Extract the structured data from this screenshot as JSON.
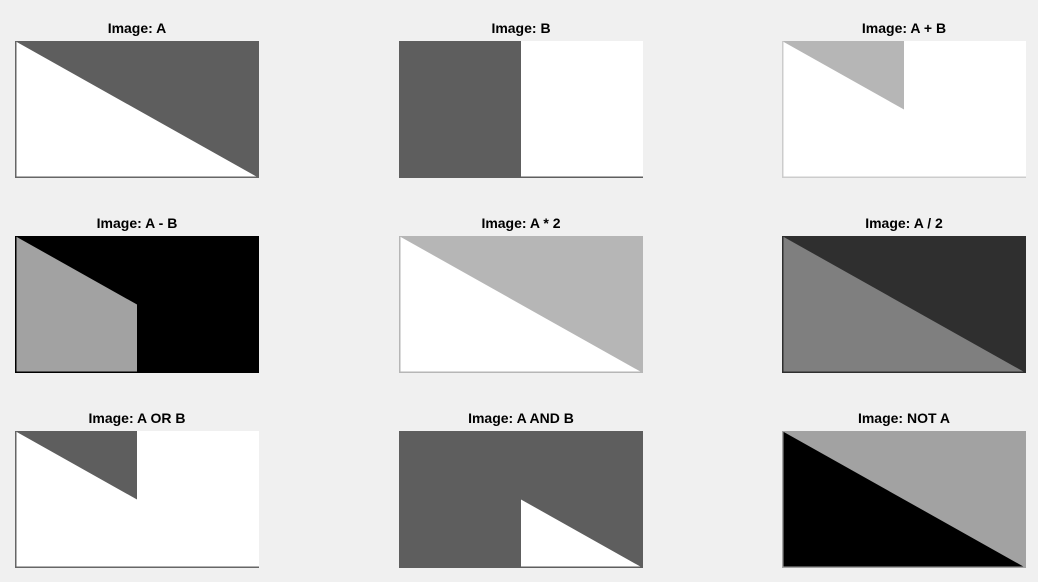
{
  "figure": {
    "panels": [
      {
        "title": "Image: A",
        "base": "#ffffff",
        "regions": [
          {
            "shape": "triangle-upper",
            "fill": "#5e5e5e"
          }
        ],
        "frame": "#666666"
      },
      {
        "title": "Image: B",
        "base": "#ffffff",
        "regions": [
          {
            "shape": "left-half",
            "fill": "#5e5e5e"
          }
        ],
        "frame": "#5e5e5e"
      },
      {
        "title": "Image: A + B",
        "base": "#ffffff",
        "regions": [
          {
            "shape": "upper-left-wedge",
            "fill": "#b6b6b6"
          }
        ],
        "frame": "#cccccc"
      },
      {
        "title": "Image: A - B",
        "base": "#000000",
        "regions": [
          {
            "shape": "lower-left-wedge",
            "fill": "#a2a2a2"
          }
        ],
        "frame": "#000000"
      },
      {
        "title": "Image: A * 2",
        "base": "#ffffff",
        "regions": [
          {
            "shape": "triangle-upper",
            "fill": "#b6b6b6"
          }
        ],
        "frame": "#b6b6b6"
      },
      {
        "title": "Image: A / 2",
        "base": "#7f7f7f",
        "regions": [
          {
            "shape": "triangle-upper",
            "fill": "#2f2f2f"
          }
        ],
        "frame": "#2f2f2f"
      },
      {
        "title": "Image: A OR B",
        "base": "#ffffff",
        "regions": [
          {
            "shape": "upper-left-wedge",
            "fill": "#5e5e5e"
          }
        ],
        "frame": "#666666"
      },
      {
        "title": "Image: A AND B",
        "base": "#5e5e5e",
        "regions": [
          {
            "shape": "lower-right-wedge",
            "fill": "#ffffff"
          }
        ],
        "frame": "#5e5e5e"
      },
      {
        "title": "Image: NOT A",
        "base": "#a2a2a2",
        "regions": [
          {
            "shape": "triangle-lower",
            "fill": "#000000"
          }
        ],
        "frame": "#a2a2a2"
      }
    ]
  }
}
